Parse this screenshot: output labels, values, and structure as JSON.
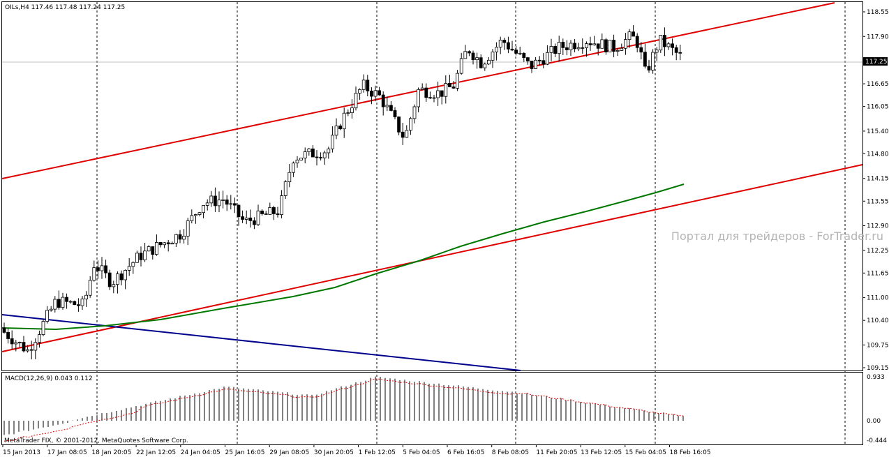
{
  "chart_data": {
    "type": "candlestick",
    "symbol_header": "OILs,H4  117.46 117.48 117.24 117.25",
    "current_price_label": "117.25",
    "current_price": 117.25,
    "watermark": "Портал для трейдеров - ForTrader.ru",
    "copyright": "MetaTrader FIX, © 2001-2012, MetaQuotes Software Corp.",
    "price_axis": {
      "ticks": [
        "118.55",
        "117.90",
        "117.25",
        "116.65",
        "116.05",
        "115.40",
        "114.80",
        "114.15",
        "113.55",
        "112.90",
        "112.25",
        "111.65",
        "111.00",
        "110.40",
        "109.75",
        "109.15"
      ],
      "ylim": [
        109.07,
        118.72
      ]
    },
    "time_axis": {
      "ticks": [
        "15 Jan 2013",
        "17 Jan 08:05",
        "18 Jan 20:05",
        "22 Jan 12:05",
        "24 Jan 04:05",
        "25 Jan 16:05",
        "29 Jan 08:05",
        "30 Jan 20:05",
        "1 Feb 12:05",
        "5 Feb 04:05",
        "6 Feb 16:05",
        "8 Feb 08:05",
        "11 Feb 20:05",
        "13 Feb 12:05",
        "15 Feb 04:05",
        "18 Feb 16:05"
      ]
    },
    "macd": {
      "label": "MACD(12,26,9) 0.043 0.112",
      "ticks": [
        "0.933",
        "0.00",
        "-0.444"
      ],
      "ylim": [
        -0.444,
        0.933
      ]
    },
    "colors": {
      "bull_candle": "#ffffff",
      "bear_candle": "#000000",
      "channel_line": "#e00000",
      "moving_average": "#007800",
      "trend_line": "#00008c",
      "signal_line": "#e00000",
      "grid": "#000000",
      "watermark": "#b4b4b4"
    }
  }
}
